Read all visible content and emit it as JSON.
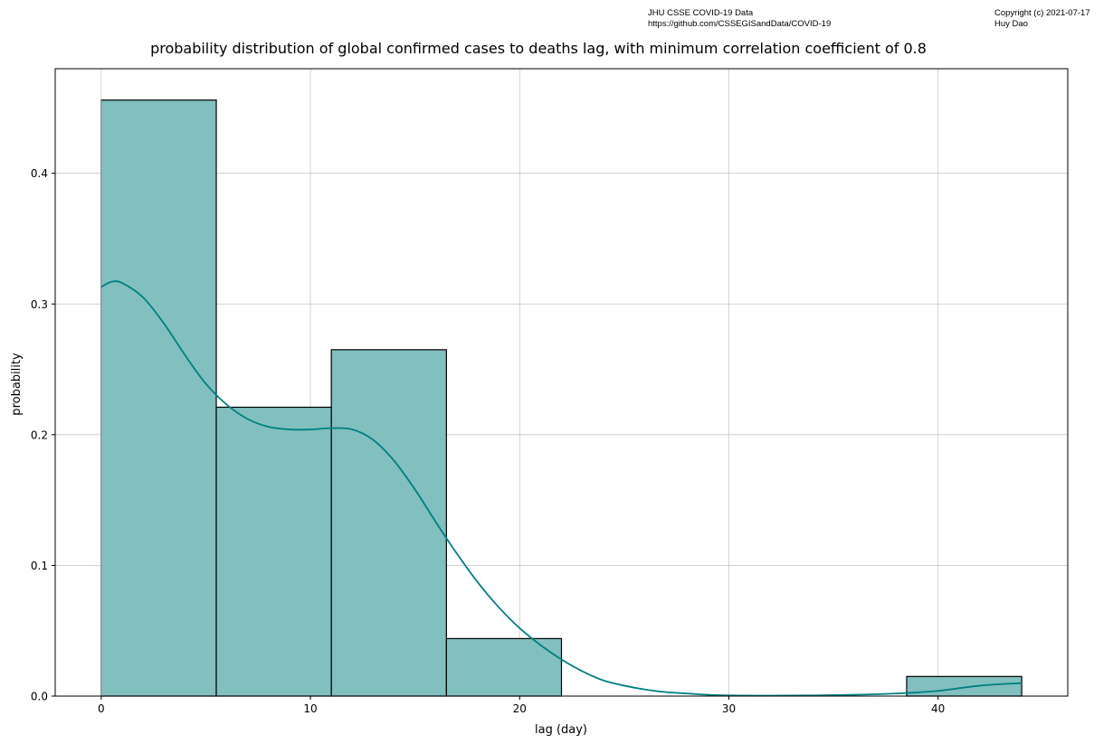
{
  "source_note": {
    "line1": "JHU CSSE COVID-19 Data",
    "line2": "https://github.com/CSSEGISandData/COVID-19"
  },
  "copyright_note": {
    "line1": "Copyright (c) 2021-07-17",
    "line2": "Huy Dao"
  },
  "chart_data": {
    "type": "bar",
    "title": "probability distribution of global confirmed cases to deaths lag, with minimum correlation coefficient of 0.8",
    "xlabel": "lag (day)",
    "ylabel": "probability",
    "xlim": [
      -2.2,
      46.2
    ],
    "ylim": [
      0,
      0.48
    ],
    "xticks": [
      0,
      10,
      20,
      30,
      40
    ],
    "yticks": [
      0.0,
      0.1,
      0.2,
      0.3,
      0.4
    ],
    "xtick_labels": [
      "0",
      "10",
      "20",
      "30",
      "40"
    ],
    "ytick_labels": [
      "0.0",
      "0.1",
      "0.2",
      "0.3",
      "0.4"
    ],
    "grid": true,
    "bins": [
      {
        "x0": 0,
        "x1": 5.5,
        "value": 0.456
      },
      {
        "x0": 5.5,
        "x1": 11,
        "value": 0.221
      },
      {
        "x0": 11,
        "x1": 16.5,
        "value": 0.265
      },
      {
        "x0": 16.5,
        "x1": 22,
        "value": 0.044
      },
      {
        "x0": 22,
        "x1": 27.5,
        "value": 0
      },
      {
        "x0": 27.5,
        "x1": 33,
        "value": 0
      },
      {
        "x0": 33,
        "x1": 38.5,
        "value": 0
      },
      {
        "x0": 38.5,
        "x1": 44,
        "value": 0.015
      }
    ],
    "kde": {
      "x": [
        0,
        0.5,
        1,
        2,
        3,
        4,
        5,
        6,
        7,
        8,
        9,
        10,
        11,
        12,
        13,
        14,
        15,
        16,
        17,
        18,
        19,
        20,
        21,
        22,
        23,
        24,
        25,
        26,
        27,
        28,
        29,
        30,
        32,
        34,
        36,
        38,
        40,
        42,
        44
      ],
      "y": [
        0.313,
        0.317,
        0.316,
        0.305,
        0.285,
        0.261,
        0.239,
        0.223,
        0.212,
        0.206,
        0.204,
        0.204,
        0.205,
        0.204,
        0.196,
        0.18,
        0.158,
        0.133,
        0.109,
        0.087,
        0.068,
        0.052,
        0.039,
        0.028,
        0.019,
        0.012,
        0.008,
        0.005,
        0.003,
        0.002,
        0.001,
        0.0005,
        0.0003,
        0.0005,
        0.001,
        0.002,
        0.004,
        0.008,
        0.01
      ]
    },
    "colors": {
      "bar_fill": "#82bfbf",
      "bar_edge": "#000000",
      "kde_line": "#008080",
      "grid": "#c8c8c8"
    }
  }
}
